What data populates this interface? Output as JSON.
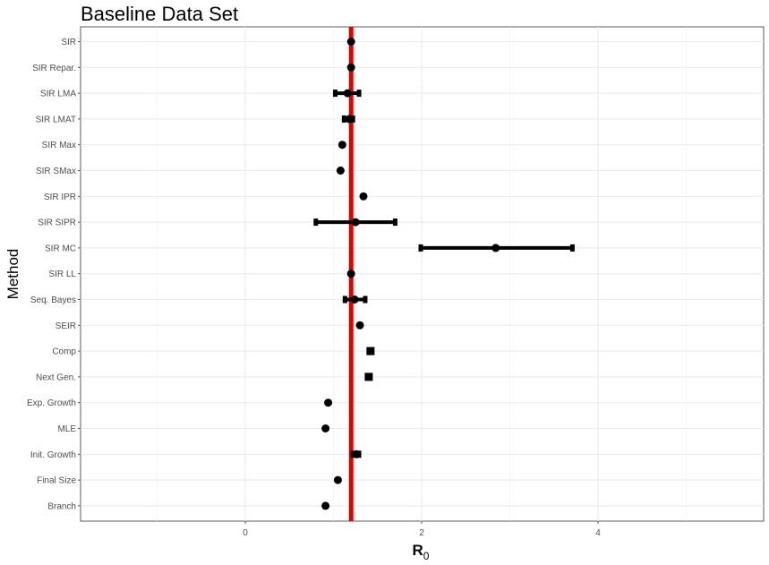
{
  "chart_data": {
    "type": "dot-errorbar",
    "title": "Baseline Data Set",
    "xlabel": "R",
    "xlabel_subscript": "0",
    "ylabel": "Method",
    "xlim": [
      -1.85,
      5.85
    ],
    "x_ticks": [
      0,
      2,
      4
    ],
    "x_minor_ticks": [
      -1,
      1,
      3,
      5
    ],
    "grid": true,
    "reference_line": {
      "x": 1.2,
      "color": "#e00000"
    },
    "categories": [
      "SIR",
      "SIR Repar.",
      "SIR LMA",
      "SIR LMAT",
      "SIR Max",
      "SIR SMax",
      "SIR IPR",
      "SIR SIPR",
      "SIR MC",
      "SIR LL",
      "Seq. Bayes",
      "SEIR",
      "Comp",
      "Next Gen.",
      "Exp. Growth",
      "MLE",
      "Init. Growth",
      "Final Size",
      "Branch"
    ],
    "series": [
      {
        "name": "estimate",
        "shape": [
          "circle",
          "circle",
          "circle",
          "circle",
          "circle",
          "circle",
          "circle",
          "circle",
          "circle",
          "circle",
          "circle",
          "circle",
          "square",
          "square",
          "circle",
          "circle",
          "circle",
          "circle",
          "circle"
        ],
        "values": [
          1.2,
          1.2,
          1.16,
          1.18,
          1.1,
          1.08,
          1.34,
          1.25,
          2.84,
          1.2,
          1.24,
          1.3,
          1.42,
          1.4,
          0.94,
          0.91,
          1.26,
          1.05,
          0.91
        ],
        "lower": [
          null,
          null,
          1.02,
          1.12,
          null,
          null,
          null,
          0.8,
          1.99,
          null,
          1.13,
          null,
          null,
          null,
          null,
          null,
          1.22,
          null,
          null
        ],
        "upper": [
          null,
          null,
          1.29,
          1.22,
          null,
          null,
          null,
          1.7,
          3.71,
          null,
          1.36,
          null,
          null,
          null,
          null,
          null,
          1.29,
          null,
          null
        ]
      }
    ]
  }
}
